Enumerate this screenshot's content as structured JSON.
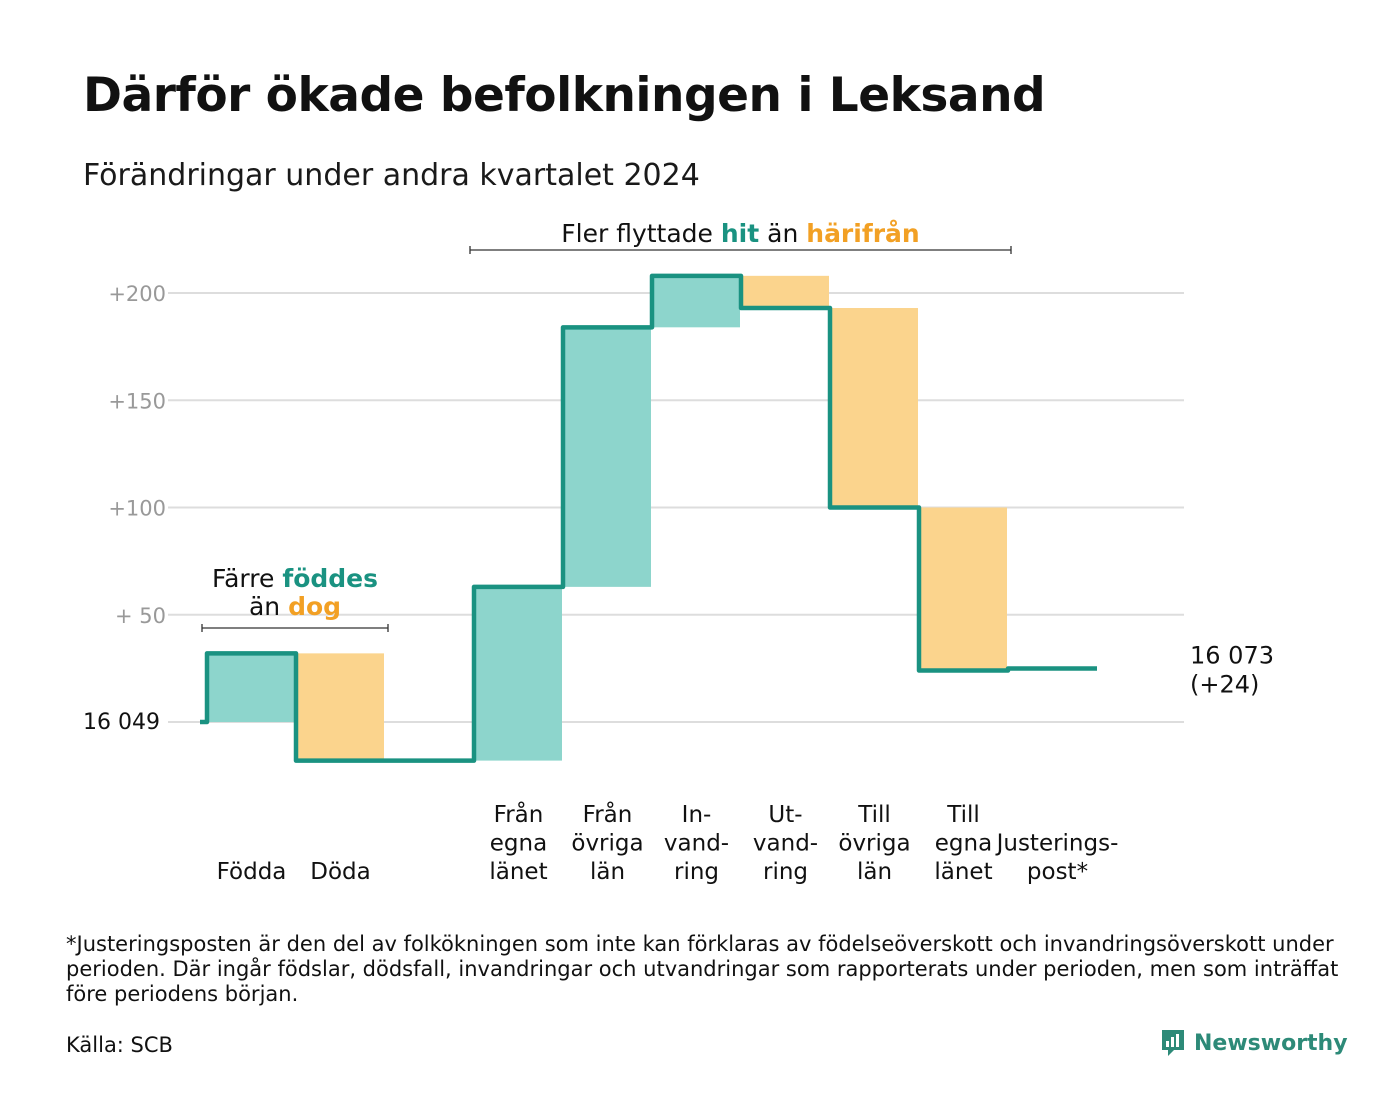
{
  "title": "Därför ökade befolkningen i Leksand",
  "subtitle": "Förändringar under andra kvartalet 2024",
  "footnote": "*Justeringsposten är den del av folkökningen som inte kan förklaras av födelseöverskott och invandringsöverskott under perioden. Där ingår födslar, dödsfall, invandringar och utvandringar som rapporterats under perioden, men som inträffat före periodens början.",
  "source": "Källa: SCB",
  "brand": "Newsworthy",
  "colors": {
    "teal_fill": "#8dd5cc",
    "teal_line": "#1a9281",
    "orange_fill": "#fbd48d",
    "orange_text": "#f2a024",
    "teal_text": "#1a9281",
    "grid": "#dddddd",
    "axis_text": "#999999"
  },
  "chart_data": {
    "type": "waterfall",
    "start_value": 16049,
    "start_label": "16  049",
    "end_label_line1": "16 073",
    "end_label_line2": "(+24)",
    "yticks": [
      {
        "value": 50,
        "label": "+  50"
      },
      {
        "value": 100,
        "label": "+100"
      },
      {
        "value": 150,
        "label": "+150"
      },
      {
        "value": 200,
        "label": "+200"
      }
    ],
    "ylim": [
      -25,
      210
    ],
    "grid": true,
    "steps": [
      {
        "label": "Födda",
        "change": 32,
        "kind": "in"
      },
      {
        "label": "Döda",
        "change": -50,
        "kind": "out"
      },
      {
        "label": "",
        "change": 0,
        "kind": "gap"
      },
      {
        "label": "Från\negna\nlänet",
        "change": 81,
        "kind": "in"
      },
      {
        "label": "Från\növriga\nlän",
        "change": 121,
        "kind": "in"
      },
      {
        "label": "In-\nvand-\nring",
        "change": 24,
        "kind": "in"
      },
      {
        "label": "Ut-\nvand-\nring",
        "change": -15,
        "kind": "out"
      },
      {
        "label": "Till\növriga\nlän",
        "change": -93,
        "kind": "out"
      },
      {
        "label": "Till\negna\nlänet",
        "change": -76,
        "kind": "out"
      },
      {
        "label": "Justerings-\npost*",
        "change": 0,
        "kind": "adjust"
      }
    ],
    "annotations": {
      "natural": {
        "prefix": "Färre ",
        "highlight1": "föddes",
        "middle": "än ",
        "highlight2": "dog"
      },
      "migration": {
        "prefix": "Fler flyttade ",
        "highlight1": "hit",
        "middle": "  än ",
        "highlight2": "härifrån"
      }
    }
  }
}
